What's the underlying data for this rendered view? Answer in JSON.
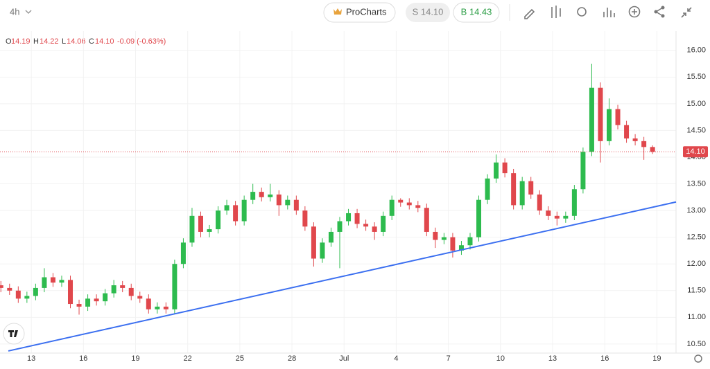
{
  "toolbar": {
    "interval": "4h",
    "procharts": "ProCharts",
    "sell": "S 14.10",
    "buy": "B 14.43"
  },
  "legend": {
    "o": "O",
    "open": "14.19",
    "h": "H",
    "high": "14.22",
    "l": "L",
    "low": "14.06",
    "c": "C",
    "close": "14.10",
    "change": "-0.09 (-0.63%)"
  },
  "chart_data": {
    "type": "candlestick",
    "up_color": "#2dbb4e",
    "down_color": "#e0474c",
    "x": [
      -1.75,
      -1.25,
      -0.75,
      -0.25,
      0.25,
      0.75,
      1.25,
      1.75,
      2.25,
      2.75,
      3.25,
      3.75,
      4.25,
      4.75,
      5.25,
      5.75,
      6.25,
      6.75,
      7.25,
      7.75,
      8.25,
      8.75,
      9.25,
      9.75,
      10.25,
      10.75,
      11.25,
      11.75,
      12.25,
      12.75,
      13.25,
      13.75,
      14.25,
      14.75,
      15.25,
      15.75,
      16.25,
      16.75,
      17.25,
      17.75,
      18.25,
      18.75,
      19.25,
      19.75,
      20.25,
      20.75,
      21.25,
      21.75,
      22.25,
      22.75,
      23.25,
      23.75,
      24.25,
      24.75,
      25.25,
      25.75,
      26.25,
      26.75,
      27.25,
      27.75,
      28.25,
      28.75,
      29.25,
      29.75,
      30.25,
      30.75,
      31.25,
      31.75,
      32.25,
      32.75,
      33.25,
      33.75,
      34.25,
      34.75,
      35.25,
      35.75
    ],
    "open": [
      11.6,
      11.55,
      11.5,
      11.35,
      11.4,
      11.55,
      11.75,
      11.65,
      11.7,
      11.25,
      11.2,
      11.35,
      11.3,
      11.45,
      11.6,
      11.55,
      11.4,
      11.35,
      11.15,
      11.2,
      11.15,
      12.0,
      12.4,
      12.9,
      12.6,
      12.65,
      13.0,
      13.1,
      12.8,
      13.2,
      13.35,
      13.25,
      13.3,
      13.1,
      13.2,
      13.0,
      12.7,
      12.1,
      12.4,
      12.6,
      12.8,
      12.95,
      12.75,
      12.7,
      12.6,
      12.9,
      13.2,
      13.15,
      13.1,
      13.05,
      12.6,
      12.45,
      12.5,
      12.25,
      12.35,
      12.5,
      13.2,
      13.6,
      13.9,
      13.7,
      13.1,
      13.55,
      13.3,
      13.0,
      12.9,
      12.85,
      12.9,
      13.4,
      14.1,
      15.3,
      14.3,
      14.9,
      14.6,
      14.35,
      14.3,
      14.19
    ],
    "high": [
      11.68,
      11.63,
      11.58,
      11.48,
      11.63,
      11.92,
      11.83,
      11.78,
      11.78,
      11.33,
      11.43,
      11.43,
      11.53,
      11.7,
      11.68,
      11.63,
      11.48,
      11.43,
      11.28,
      11.28,
      12.08,
      12.48,
      13.05,
      12.98,
      12.73,
      13.08,
      13.2,
      13.18,
      13.28,
      13.5,
      13.43,
      13.5,
      13.38,
      13.28,
      13.28,
      13.08,
      12.78,
      12.48,
      12.68,
      12.88,
      13.03,
      13.03,
      12.83,
      12.78,
      12.98,
      13.28,
      13.23,
      13.23,
      13.18,
      13.13,
      12.68,
      12.58,
      12.58,
      12.43,
      12.58,
      13.28,
      13.68,
      14.05,
      13.98,
      13.78,
      13.63,
      13.63,
      13.38,
      13.08,
      12.98,
      12.98,
      13.48,
      14.18,
      15.75,
      15.4,
      15.1,
      14.98,
      14.68,
      14.43,
      14.38,
      14.22
    ],
    "low": [
      11.47,
      11.42,
      11.27,
      11.27,
      11.32,
      11.47,
      11.57,
      11.57,
      11.17,
      11.05,
      11.12,
      11.22,
      11.22,
      11.37,
      11.47,
      11.32,
      11.27,
      11.07,
      11.07,
      11.07,
      11.07,
      11.92,
      12.32,
      12.5,
      12.5,
      12.57,
      12.92,
      12.72,
      12.72,
      13.12,
      13.17,
      13.17,
      12.9,
      13.02,
      12.92,
      12.62,
      11.95,
      12.02,
      12.32,
      11.92,
      12.72,
      12.67,
      12.62,
      12.45,
      12.52,
      12.82,
      13.07,
      13.02,
      12.97,
      12.52,
      12.3,
      12.37,
      12.12,
      12.17,
      12.27,
      12.42,
      13.12,
      13.52,
      13.62,
      13.02,
      13.02,
      13.22,
      12.92,
      12.82,
      12.72,
      12.77,
      12.82,
      13.32,
      14.02,
      13.9,
      14.22,
      14.52,
      14.27,
      14.22,
      13.95,
      14.06
    ],
    "close": [
      11.55,
      11.5,
      11.35,
      11.4,
      11.55,
      11.75,
      11.65,
      11.7,
      11.25,
      11.2,
      11.35,
      11.3,
      11.45,
      11.6,
      11.55,
      11.4,
      11.35,
      11.15,
      11.2,
      11.15,
      12.0,
      12.4,
      12.9,
      12.6,
      12.65,
      13.0,
      13.1,
      12.8,
      13.2,
      13.35,
      13.25,
      13.3,
      13.1,
      13.2,
      13.0,
      12.7,
      12.1,
      12.4,
      12.6,
      12.8,
      12.95,
      12.75,
      12.7,
      12.6,
      12.9,
      13.2,
      13.15,
      13.1,
      13.05,
      12.6,
      12.45,
      12.5,
      12.25,
      12.35,
      12.5,
      13.2,
      13.6,
      13.9,
      13.7,
      13.1,
      13.55,
      13.3,
      13.0,
      12.9,
      12.85,
      12.9,
      13.4,
      14.1,
      15.3,
      14.3,
      14.9,
      14.6,
      14.35,
      14.3,
      14.19,
      14.1
    ],
    "last_price": {
      "value": 14.1,
      "label": "14.10",
      "color": "#e0474c"
    },
    "trendline": {
      "x": [
        -1.32,
        37.1
      ],
      "y": [
        10.37,
        13.16
      ],
      "color": "#3b6ff0"
    },
    "xlim": [
      -1.8,
      37.1
    ],
    "xticks": [
      {
        "value": 0,
        "label": "13"
      },
      {
        "value": 3,
        "label": "16"
      },
      {
        "value": 6,
        "label": "19"
      },
      {
        "value": 9,
        "label": "22"
      },
      {
        "value": 12,
        "label": "25"
      },
      {
        "value": 15,
        "label": "28"
      },
      {
        "value": 18,
        "label": "Jul"
      },
      {
        "value": 21,
        "label": "4"
      },
      {
        "value": 24,
        "label": "7"
      },
      {
        "value": 27,
        "label": "10"
      },
      {
        "value": 30,
        "label": "13"
      },
      {
        "value": 33,
        "label": "16"
      },
      {
        "value": 36,
        "label": "19"
      }
    ],
    "ylim": [
      10.33,
      16.36
    ],
    "yticks": [
      {
        "value": 10.5,
        "label": "10.50"
      },
      {
        "value": 11,
        "label": "11.00"
      },
      {
        "value": 11.5,
        "label": "11.50"
      },
      {
        "value": 12,
        "label": "12.00"
      },
      {
        "value": 12.5,
        "label": "12.50"
      },
      {
        "value": 13,
        "label": "13.00"
      },
      {
        "value": 13.5,
        "label": "13.50"
      },
      {
        "value": 14,
        "label": "14.00"
      },
      {
        "value": 14.5,
        "label": "14.50"
      },
      {
        "value": 15,
        "label": "15.00"
      },
      {
        "value": 15.5,
        "label": "15.50"
      },
      {
        "value": 16,
        "label": "16.00"
      }
    ],
    "grid": true
  }
}
